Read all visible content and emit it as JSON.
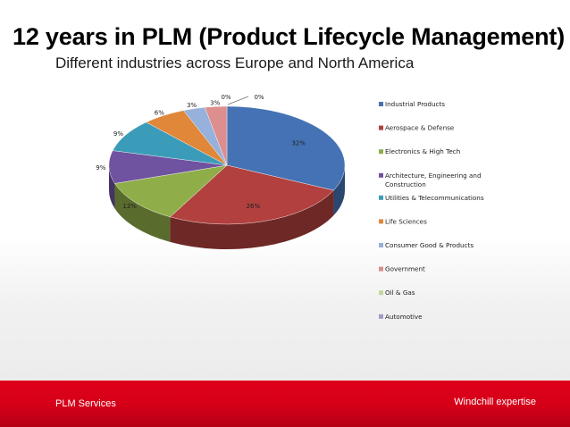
{
  "slide": {
    "title": "12 years in PLM (Product Lifecycle Management)",
    "subtitle": "Different industries across Europe and North America"
  },
  "footer": {
    "left_text": "PLM Services",
    "right_text": "Windchill expertise",
    "color": "#d40018"
  },
  "chart_data": {
    "type": "pie",
    "title": "",
    "legend_position": "right",
    "slices": [
      {
        "label": "Industrial Products",
        "value": 32,
        "display": "32%",
        "color": "#4472b4"
      },
      {
        "label": "Aerospace & Defense",
        "value": 26,
        "display": "26%",
        "color": "#b1403e"
      },
      {
        "label": "Electronics & High Tech",
        "value": 12,
        "display": "12%",
        "color": "#8fae4a"
      },
      {
        "label": "Architecture, Engineering and Construction",
        "value": 9,
        "display": "9%",
        "color": "#6f52a0"
      },
      {
        "label": "Utilities & Telecommunications",
        "value": 9,
        "display": "9%",
        "color": "#3a9cb8"
      },
      {
        "label": "Life Sciences",
        "value": 6,
        "display": "6%",
        "color": "#e0873a"
      },
      {
        "label": "Consumer Good & Products",
        "value": 3,
        "display": "3%",
        "color": "#95b1dc"
      },
      {
        "label": "Government",
        "value": 3,
        "display": "3%",
        "color": "#dc8f8e"
      },
      {
        "label": "Oil & Gas",
        "value": 0,
        "display": "0%",
        "color": "#c4d79b"
      },
      {
        "label": "Automotive",
        "value": 0,
        "display": "0%",
        "color": "#a29ac4"
      }
    ]
  }
}
